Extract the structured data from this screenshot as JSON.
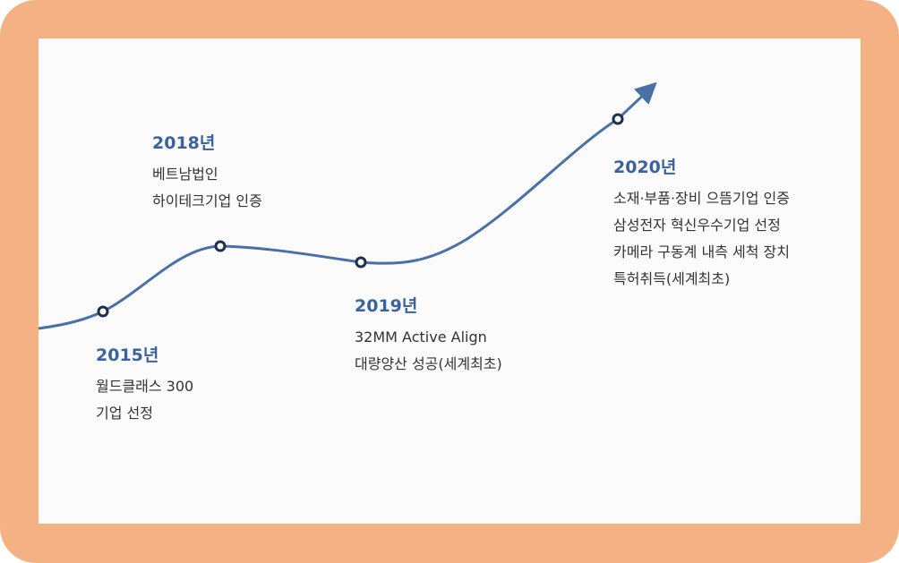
{
  "milestones": [
    {
      "year": "2015년",
      "lines": [
        "월드클래스 300",
        "기업 선정"
      ]
    },
    {
      "year": "2018년",
      "lines": [
        "베트남법인",
        "하이테크기업 인증"
      ]
    },
    {
      "year": "2019년",
      "lines": [
        "32MM  Active Align",
        "대량양산 성공(세계최초)"
      ]
    },
    {
      "year": "2020년",
      "lines": [
        "소재·부품·장비 으뜸기업 인증",
        "삼성전자 혁신우수기업 선정",
        "카메라 구동계 내측 세척 장치",
        "특허취득(세계최초)"
      ]
    }
  ]
}
